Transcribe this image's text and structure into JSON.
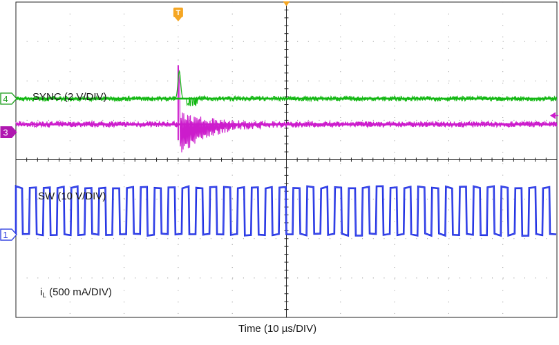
{
  "chart_data": {
    "type": "line",
    "xlabel": "Time (10 µs/DIV)",
    "x_divisions": 10,
    "y_divisions": 8,
    "trigger_marker": "T",
    "series": [
      {
        "name": "SYNC (2 V/DIV)",
        "channel": "1",
        "color": "#1f2fe0",
        "marker_color": "#3040e0",
        "waveform": "square",
        "periods_per_division": 3.9,
        "duty_cycle": 0.5,
        "low_level_div": 2.1,
        "high_level_div": 3.3,
        "ground_marker_div": 2.1,
        "noise_div": 0.06
      },
      {
        "name": "SW (10 V/DIV)",
        "channel": "3",
        "color": "#cc1ccc",
        "marker_color": "#b018b0",
        "waveform": "dc_with_ringing_transient",
        "level_div": 4.9,
        "ground_marker_div": 4.7,
        "transient_start_div": 3.0,
        "transient_peak_div": 6.4,
        "transient_min_div": 4.5,
        "ring_decay_div": 1.6,
        "noise_div": 0.07
      },
      {
        "name": "i",
        "subscript": "L",
        "name_suffix": " (500 mA/DIV)",
        "channel": "4",
        "color": "#14b814",
        "marker_color": "#22a022",
        "waveform": "dc_with_pulse",
        "level_div": 5.55,
        "ground_marker_div": 5.55,
        "transient_start_div": 3.0,
        "transient_peak_div": 6.25,
        "noise_div": 0.06
      }
    ],
    "channel_arrow_color": "#cc1ccc",
    "trigger_color": "#f5a623"
  }
}
